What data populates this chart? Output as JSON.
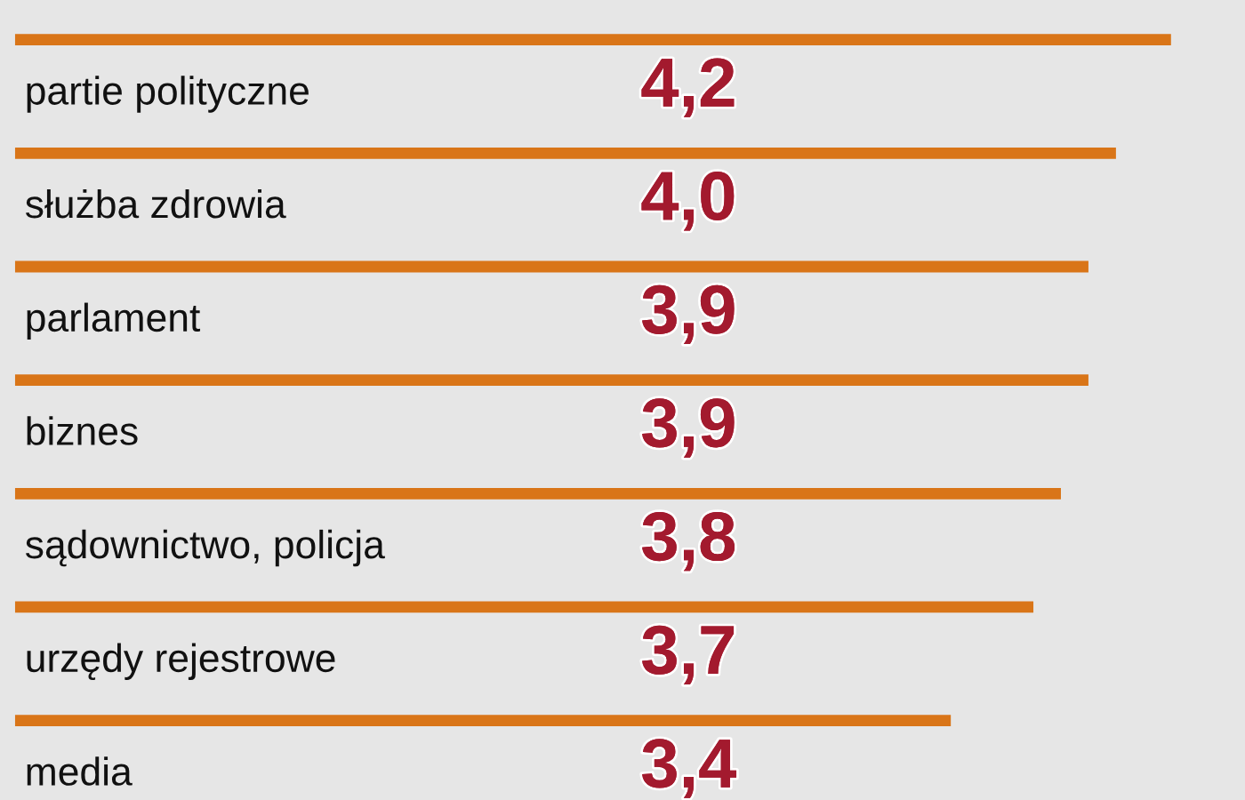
{
  "chart_data": {
    "type": "bar",
    "orientation": "horizontal",
    "categories": [
      "partie polityczne",
      "służba zdrowia",
      "parlament",
      "biznes",
      "sądownictwo, policja",
      "urzędy rejestrowe",
      "media"
    ],
    "values": [
      4.2,
      4.0,
      3.9,
      3.9,
      3.8,
      3.7,
      3.4
    ],
    "value_labels": [
      "4,2",
      "4,0",
      "3,9",
      "3,9",
      "3,8",
      "3,7",
      "3,4"
    ],
    "color": "#d97518"
  }
}
